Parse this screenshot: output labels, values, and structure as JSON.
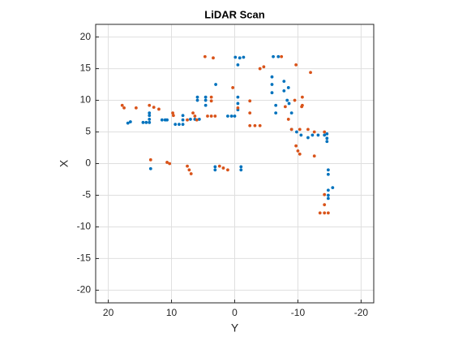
{
  "chart_data": {
    "type": "scatter",
    "title": "LiDAR Scan",
    "x_label": "Y",
    "y_label": "X",
    "xlim": [
      22,
      -22
    ],
    "ylim": [
      -22,
      22
    ],
    "xticks": [
      20,
      10,
      0,
      -10,
      -20
    ],
    "yticks": [
      -20,
      -15,
      -10,
      -5,
      0,
      5,
      10,
      15,
      20
    ],
    "grid": true,
    "series": [
      {
        "color": "#0072bd",
        "x": [
          16.9,
          16.5,
          14.5,
          14.0,
          13.5,
          13.5,
          13.5,
          13.5,
          13.3,
          11.5,
          11.0,
          10.7,
          9.4,
          8.8,
          8.2,
          8.2,
          8.2,
          7.0,
          6.3,
          5.6,
          5.9,
          5.9,
          4.6,
          4.6,
          4.6,
          3.0,
          3.1,
          3.1,
          1.1,
          0.5,
          0.0,
          -0.5,
          -0.5,
          -0.5,
          -0.1,
          -0.8,
          -1.4,
          -0.5,
          -1.0,
          -1.0,
          -6.1,
          -6.9,
          -5.9,
          -5.9,
          -5.9,
          -6.5,
          -6.5,
          -7.8,
          -7.8,
          -8.3,
          -8.5,
          -9.0,
          -8.6,
          -9.0,
          -9.8,
          -10.5,
          -11.6,
          -12.3,
          -13.2,
          -14.2,
          -14.6,
          -14.6,
          -14.6,
          -14.8,
          -14.8,
          -14.8,
          -14.8,
          -14.8,
          -15.5
        ],
        "values": [
          6.4,
          6.6,
          6.5,
          6.5,
          6.5,
          7.0,
          7.6,
          8.0,
          -0.8,
          6.9,
          6.9,
          6.9,
          6.2,
          6.2,
          6.2,
          6.9,
          7.6,
          7.0,
          7.0,
          7.0,
          10.5,
          10.0,
          9.2,
          10.0,
          10.5,
          12.5,
          -0.5,
          -1.0,
          7.5,
          7.5,
          7.5,
          10.5,
          9.5,
          8.5,
          16.8,
          16.7,
          16.8,
          15.6,
          -0.5,
          -1.0,
          16.9,
          16.9,
          13.7,
          12.5,
          11.2,
          9.2,
          8.0,
          13.0,
          11.5,
          10.0,
          12.0,
          8.0,
          9.5,
          5.4,
          5.0,
          4.5,
          4.1,
          4.5,
          4.5,
          4.5,
          4.7,
          4.0,
          3.5,
          -1.0,
          -1.7,
          -4.2,
          -5.0,
          -5.5,
          -3.8
        ]
      },
      {
        "color": "#d95319",
        "x": [
          17.8,
          17.5,
          15.6,
          13.5,
          12.8,
          12.0,
          13.3,
          10.7,
          10.3,
          9.8,
          9.7,
          7.5,
          7.5,
          7.2,
          6.9,
          6.6,
          6.3,
          6.0,
          4.7,
          3.4,
          3.7,
          3.7,
          4.3,
          3.7,
          3.1,
          2.4,
          1.8,
          1.1,
          0.3,
          -0.5,
          -2.4,
          -2.4,
          -2.4,
          -3.2,
          -4.0,
          -4.0,
          -4.6,
          -7.4,
          -8.0,
          -8.5,
          -9.0,
          -9.7,
          -12.0,
          -9.5,
          -10.6,
          -10.3,
          -11.6,
          -9.7,
          -10.0,
          -10.3,
          -10.7,
          -10.7,
          -12.6,
          -14.2,
          -12.6,
          -14.2,
          -14.2,
          -14.2,
          -13.5,
          -14.8
        ],
        "values": [
          9.2,
          8.8,
          8.8,
          9.2,
          8.9,
          8.6,
          0.6,
          0.2,
          0.0,
          8.0,
          7.6,
          6.9,
          -0.4,
          -1.0,
          -1.6,
          8.0,
          7.5,
          6.9,
          16.9,
          16.7,
          10.5,
          9.9,
          7.5,
          7.5,
          7.5,
          -0.4,
          -0.7,
          -1.0,
          12.0,
          8.8,
          9.9,
          8.0,
          6.0,
          6.0,
          6.0,
          15.0,
          15.3,
          16.9,
          9.0,
          7.0,
          5.4,
          15.6,
          14.4,
          10.0,
          9.0,
          5.4,
          5.4,
          2.8,
          2.0,
          1.5,
          10.5,
          9.2,
          5.0,
          5.0,
          1.2,
          -4.9,
          -6.5,
          -7.8,
          -7.8,
          -7.8
        ]
      }
    ]
  }
}
